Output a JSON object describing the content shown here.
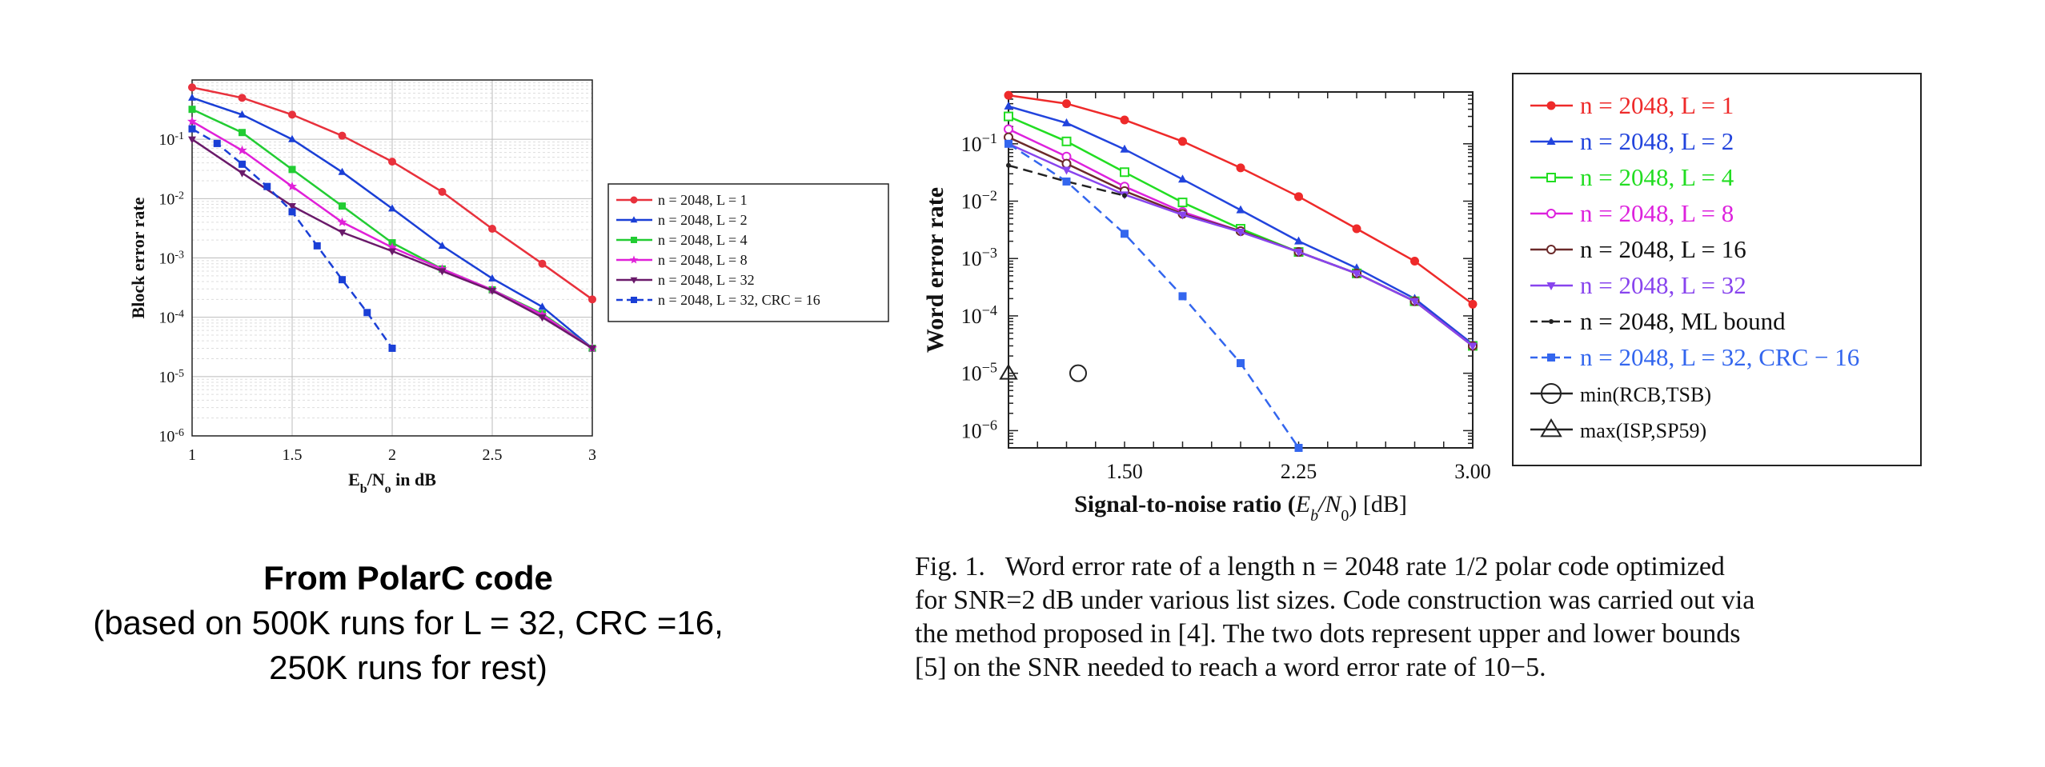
{
  "chart_data": [
    {
      "type": "line",
      "xlabel": "E_b/N_o in dB",
      "ylabel": "Block error rate",
      "xlim": [
        1,
        3
      ],
      "ylim": [
        1e-06,
        1
      ],
      "yscale": "log",
      "grid": true,
      "legend_position": "right",
      "xticks": [
        1,
        1.5,
        2,
        2.5,
        3
      ],
      "xtick_labels": [
        "1",
        "1.5",
        "2",
        "2.5",
        "3"
      ],
      "yticks": [
        1e-06,
        1e-05,
        0.0001,
        0.001,
        0.01,
        0.1
      ],
      "ytick_labels": [
        "10-6",
        "10-5",
        "10-4",
        "10-3",
        "10-2",
        "10-1"
      ],
      "series": [
        {
          "name": "n = 2048, L = 1",
          "color": "#e8313c",
          "marker": "circle",
          "dash": false,
          "x": [
            1,
            1.25,
            1.5,
            1.75,
            2,
            2.25,
            2.5,
            2.75,
            3
          ],
          "y": [
            0.75,
            0.5,
            0.26,
            0.115,
            0.042,
            0.013,
            0.0031,
            0.0008,
            0.0002
          ]
        },
        {
          "name": "n = 2048, L = 2",
          "color": "#1a3fd6",
          "marker": "triangle",
          "dash": false,
          "x": [
            1,
            1.25,
            1.5,
            1.75,
            2,
            2.25,
            2.5,
            2.75,
            3
          ],
          "y": [
            0.5,
            0.26,
            0.1,
            0.028,
            0.0068,
            0.0016,
            0.00045,
            0.00015,
            3e-05
          ]
        },
        {
          "name": "n = 2048, L = 4",
          "color": "#22cc33",
          "marker": "square",
          "dash": false,
          "x": [
            1,
            1.25,
            1.5,
            1.75,
            2,
            2.25,
            2.5,
            2.75,
            3
          ],
          "y": [
            0.32,
            0.13,
            0.031,
            0.0075,
            0.0018,
            0.00065,
            0.00029,
            0.000115,
            3e-05
          ]
        },
        {
          "name": "n = 2048, L = 8",
          "color": "#e020d8",
          "marker": "star",
          "dash": false,
          "x": [
            1,
            1.25,
            1.5,
            1.75,
            2,
            2.25,
            2.5,
            2.75,
            3
          ],
          "y": [
            0.2,
            0.065,
            0.016,
            0.004,
            0.0015,
            0.00065,
            0.00029,
            0.00011,
            3e-05
          ]
        },
        {
          "name": "n = 2048, L = 32",
          "color": "#6a1a6a",
          "marker": "triangle-down",
          "dash": false,
          "x": [
            1,
            1.25,
            1.5,
            1.75,
            2,
            2.25,
            2.5,
            2.75,
            3
          ],
          "y": [
            0.1,
            0.027,
            0.0075,
            0.0027,
            0.0013,
            0.0006,
            0.00028,
            0.0001,
            3e-05
          ]
        },
        {
          "name": "n = 2048, L = 32, CRC = 16",
          "color": "#1a3fd6",
          "marker": "square",
          "dash": true,
          "x": [
            1,
            1.125,
            1.25,
            1.375,
            1.5,
            1.625,
            1.75,
            1.875,
            2
          ],
          "y": [
            0.15,
            0.085,
            0.038,
            0.016,
            0.006,
            0.0016,
            0.00043,
            0.00012,
            3e-05
          ]
        }
      ]
    },
    {
      "type": "line",
      "xlabel": "Signal-to-noise ratio (E_b/N_0) [dB]",
      "ylabel": "Word error rate",
      "xlim": [
        1.0,
        3.0
      ],
      "ylim": [
        5e-07,
        0.8
      ],
      "yscale": "log",
      "grid": false,
      "legend_position": "right",
      "xticks": [
        1.5,
        2.25,
        3.0
      ],
      "xtick_labels": [
        "1.50",
        "2.25",
        "3.00"
      ],
      "yticks": [
        1e-06,
        1e-05,
        0.0001,
        0.001,
        0.01,
        0.1
      ],
      "ytick_labels": [
        "10−6",
        "10−5",
        "10−4",
        "10−3",
        "10−2",
        "10−1"
      ],
      "series": [
        {
          "name": "n = 2048, L = 1",
          "color": "#ee2a2a",
          "marker": "circle",
          "dash": false,
          "x": [
            1.0,
            1.25,
            1.5,
            1.75,
            2.0,
            2.25,
            2.5,
            2.75,
            3.0
          ],
          "y": [
            0.7,
            0.5,
            0.26,
            0.11,
            0.038,
            0.012,
            0.0033,
            0.0009,
            0.00016
          ]
        },
        {
          "name": "n = 2048, L = 2",
          "color": "#2244dd",
          "marker": "triangle",
          "dash": false,
          "x": [
            1.0,
            1.25,
            1.5,
            1.75,
            2.0,
            2.25,
            2.5,
            2.75,
            3.0
          ],
          "y": [
            0.45,
            0.23,
            0.08,
            0.024,
            0.007,
            0.002,
            0.00068,
            0.0002,
            3.2e-05
          ]
        },
        {
          "name": "n = 2048, L = 4",
          "color": "#22dd22",
          "marker": "square-open",
          "dash": false,
          "x": [
            1.0,
            1.25,
            1.5,
            1.75,
            2.0,
            2.25,
            2.5,
            2.75,
            3.0
          ],
          "y": [
            0.3,
            0.11,
            0.032,
            0.0095,
            0.0033,
            0.0013,
            0.00055,
            0.00018,
            3e-05
          ]
        },
        {
          "name": "n = 2048, L = 8",
          "color": "#dd22dd",
          "marker": "circle-open",
          "dash": false,
          "x": [
            1.0,
            1.25,
            1.5,
            1.75,
            2.0,
            2.25,
            2.5,
            2.75,
            3.0
          ],
          "y": [
            0.18,
            0.06,
            0.018,
            0.0065,
            0.003,
            0.0013,
            0.00055,
            0.00018,
            3e-05
          ]
        },
        {
          "name": "n = 2048, L = 16",
          "color": "#6b2a2a",
          "marker": "circle-open",
          "dash": false,
          "x": [
            1.0,
            1.25,
            1.5,
            1.75,
            2.0,
            2.25,
            2.5,
            2.75,
            3.0
          ],
          "y": [
            0.13,
            0.045,
            0.015,
            0.006,
            0.003,
            0.0013,
            0.00055,
            0.00018,
            3e-05
          ]
        },
        {
          "name": "n = 2048, L = 32",
          "color": "#8844ee",
          "marker": "triangle-down",
          "dash": false,
          "x": [
            1.0,
            1.25,
            1.5,
            1.75,
            2.0,
            2.25,
            2.5,
            2.75,
            3.0
          ],
          "y": [
            0.1,
            0.035,
            0.013,
            0.0058,
            0.0029,
            0.0013,
            0.00055,
            0.00018,
            3e-05
          ]
        },
        {
          "name": "n = 2048, ML bound",
          "color": "#222222",
          "marker": "dot",
          "dash": true,
          "x": [
            1.0,
            1.25,
            1.5
          ],
          "y": [
            0.042,
            0.022,
            0.0125
          ]
        },
        {
          "name": "n = 2048, L = 32, CRC − 16",
          "color": "#3366ee",
          "marker": "square",
          "dash": true,
          "x": [
            1.0,
            1.25,
            1.5,
            1.75,
            2.0,
            2.25
          ],
          "y": [
            0.1,
            0.022,
            0.0027,
            0.00022,
            1.5e-05,
            5e-07
          ]
        },
        {
          "name": "min(RCB,TSB)",
          "color": "#222222",
          "marker": "circle-big",
          "dash": false,
          "line": false,
          "x": [
            1.3
          ],
          "y": [
            1e-05
          ]
        },
        {
          "name": "max(ISP,SP59)",
          "color": "#222222",
          "marker": "triangle-big",
          "dash": false,
          "line": false,
          "x": [
            1.0
          ],
          "y": [
            1e-05
          ]
        }
      ]
    }
  ],
  "left_caption": {
    "title": "From PolarC code",
    "line2": "(based on 500K runs for L = 32, CRC =16,",
    "line3": "250K runs for rest)"
  },
  "right_caption": {
    "line1": "Fig. 1.   Word error rate of a length n = 2048 rate 1/2 polar code optimized",
    "line2": "for SNR=2 dB under various list sizes. Code construction was carried out via",
    "line3": "the method proposed in [4]. The two dots represent upper and lower bounds",
    "line4": "[5] on the SNR needed to reach a word error rate of 10−5."
  }
}
